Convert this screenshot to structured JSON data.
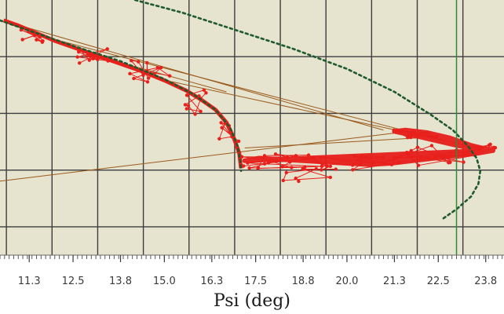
{
  "chart_data": {
    "type": "scatter",
    "title": "",
    "xlabel": "Psi (deg)",
    "ylabel": "",
    "x_ticks": [
      "11.3",
      "12.5",
      "13.8",
      "15.0",
      "16.3",
      "17.5",
      "18.8",
      "20.0",
      "21.3",
      "22.5",
      "23.8"
    ],
    "xlim": [
      10.5,
      24.3
    ],
    "ylim": [
      0,
      1
    ],
    "grid": true,
    "legend": "none",
    "colors": {
      "background": "#e6e3cf",
      "grid": "#3d3d3d",
      "limit_curve": "#1f5a2d",
      "measured": "#e8201c",
      "connector": "#9a5a1c",
      "vertical_marker": "#2e8b3a"
    },
    "vertical_marker_x": 23.0,
    "series": [
      {
        "role": "inner-limit-curve",
        "x": [
          10.5,
          11.3,
          12.5,
          13.8,
          15.0,
          15.8,
          16.4,
          16.8,
          17.0,
          17.08,
          17.1
        ],
        "y": [
          0.92,
          0.88,
          0.82,
          0.76,
          0.69,
          0.63,
          0.57,
          0.5,
          0.43,
          0.37,
          0.33
        ]
      },
      {
        "role": "outer-limit-curve",
        "x": [
          14.2,
          15.5,
          17.0,
          18.5,
          20.0,
          21.3,
          22.3,
          22.9,
          23.3,
          23.55,
          23.65,
          23.6,
          23.4,
          23.0,
          22.6
        ],
        "y": [
          1.0,
          0.95,
          0.88,
          0.81,
          0.73,
          0.64,
          0.55,
          0.49,
          0.43,
          0.38,
          0.33,
          0.28,
          0.23,
          0.18,
          0.14
        ]
      },
      {
        "role": "measured-upper-branch",
        "x": [
          10.6,
          11.0,
          11.5,
          12.0,
          12.6,
          13.2,
          13.8,
          14.4,
          15.0,
          15.6,
          16.0,
          16.4,
          16.7,
          16.9,
          17.05,
          17.1
        ],
        "y": [
          0.92,
          0.9,
          0.87,
          0.84,
          0.81,
          0.78,
          0.75,
          0.72,
          0.685,
          0.645,
          0.61,
          0.57,
          0.52,
          0.46,
          0.4,
          0.34
        ]
      },
      {
        "role": "measured-lower-band",
        "x": [
          17.2,
          17.6,
          18.2,
          18.8,
          19.4,
          20.0,
          20.6,
          21.2,
          21.8,
          22.4,
          23.0,
          23.6,
          24.0,
          23.4,
          22.8,
          22.2,
          21.6,
          21.3,
          21.8,
          22.4,
          23.0,
          23.8
        ],
        "y": [
          0.37,
          0.38,
          0.375,
          0.37,
          0.365,
          0.36,
          0.355,
          0.36,
          0.37,
          0.38,
          0.39,
          0.4,
          0.41,
          0.43,
          0.46,
          0.48,
          0.49,
          0.485,
          0.47,
          0.45,
          0.43,
          0.41
        ]
      }
    ]
  }
}
